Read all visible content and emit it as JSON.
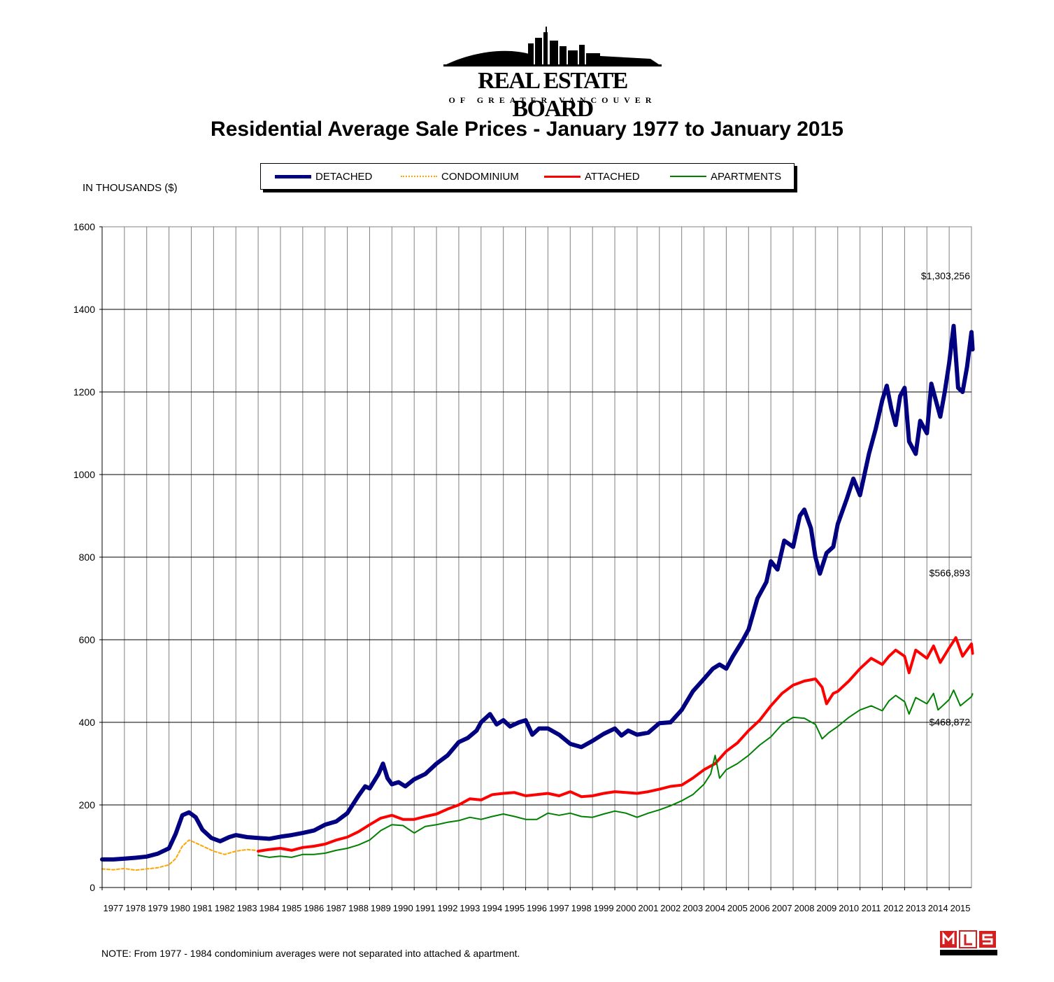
{
  "header": {
    "org_line1": "REAL ESTATE BOARD",
    "org_line2": "OF GREATER VANCOUVER",
    "title": "Residential Average Sale Prices  -  January 1977 to January 2015"
  },
  "y_unit_label": "IN THOUSANDS ($)",
  "legend": [
    {
      "label": "DETACHED",
      "color": "#000080",
      "style": "thick-solid"
    },
    {
      "label": "CONDOMINIUM",
      "color": "#FFA500",
      "style": "dotted"
    },
    {
      "label": "ATTACHED",
      "color": "#FF0000",
      "style": "solid"
    },
    {
      "label": "APARTMENTS",
      "color": "#008000",
      "style": "solid"
    }
  ],
  "annotations": [
    {
      "text": "$1,303,256",
      "series": "DETACHED",
      "x": 2014.05,
      "y": 1303
    },
    {
      "text": "$566,893",
      "series": "ATTACHED",
      "x": 2014.05,
      "y": 567
    },
    {
      "text": "$468,872",
      "series": "APARTMENTS",
      "x": 2014.05,
      "y": 469
    }
  ],
  "note": "NOTE:  From 1977 - 1984 condominium averages were not separated into attached & apartment.",
  "chart_data": {
    "type": "line",
    "title": "Residential Average Sale Prices  -  January 1977 to January 2015",
    "ylabel": "IN THOUSANDS ($)",
    "xlabel": "",
    "ylim": [
      0,
      1600
    ],
    "xlim": [
      1977,
      2016
    ],
    "yticks": [
      0,
      200,
      400,
      600,
      800,
      1000,
      1200,
      1400,
      1600
    ],
    "xticks": [
      "1977",
      "1978",
      "1979",
      "1980",
      "1981",
      "1982",
      "1983",
      "1984",
      "1985",
      "1986",
      "1987",
      "1988",
      "1989",
      "1990",
      "1991",
      "1992",
      "1993",
      "1994",
      "1995",
      "1996",
      "1997",
      "1998",
      "1999",
      "2000",
      "2001",
      "2002",
      "2003",
      "2004",
      "2005",
      "2006",
      "2007",
      "2008",
      "2009",
      "2010",
      "2011",
      "2012",
      "2013",
      "2014",
      "2015"
    ],
    "grid": true,
    "series": [
      {
        "name": "DETACHED",
        "color": "#000080",
        "width": 6,
        "dash": "",
        "points": [
          [
            1977,
            68
          ],
          [
            1977.5,
            68
          ],
          [
            1978,
            70
          ],
          [
            1978.5,
            72
          ],
          [
            1979,
            75
          ],
          [
            1979.5,
            82
          ],
          [
            1980,
            95
          ],
          [
            1980.3,
            130
          ],
          [
            1980.6,
            175
          ],
          [
            1980.9,
            182
          ],
          [
            1981.2,
            170
          ],
          [
            1981.5,
            140
          ],
          [
            1981.9,
            120
          ],
          [
            1982.3,
            112
          ],
          [
            1982.7,
            122
          ],
          [
            1983,
            127
          ],
          [
            1983.5,
            122
          ],
          [
            1984,
            120
          ],
          [
            1984.5,
            118
          ],
          [
            1985,
            123
          ],
          [
            1985.5,
            127
          ],
          [
            1986,
            132
          ],
          [
            1986.5,
            138
          ],
          [
            1987,
            152
          ],
          [
            1987.5,
            160
          ],
          [
            1988,
            180
          ],
          [
            1988.5,
            222
          ],
          [
            1988.8,
            245
          ],
          [
            1989,
            240
          ],
          [
            1989.4,
            275
          ],
          [
            1989.6,
            300
          ],
          [
            1989.8,
            265
          ],
          [
            1990,
            250
          ],
          [
            1990.3,
            255
          ],
          [
            1990.6,
            245
          ],
          [
            1991,
            262
          ],
          [
            1991.5,
            275
          ],
          [
            1992,
            300
          ],
          [
            1992.5,
            320
          ],
          [
            1993,
            352
          ],
          [
            1993.4,
            362
          ],
          [
            1993.8,
            380
          ],
          [
            1994,
            400
          ],
          [
            1994.4,
            420
          ],
          [
            1994.7,
            395
          ],
          [
            1995,
            405
          ],
          [
            1995.3,
            390
          ],
          [
            1995.7,
            400
          ],
          [
            1996,
            405
          ],
          [
            1996.3,
            370
          ],
          [
            1996.6,
            385
          ],
          [
            1997,
            385
          ],
          [
            1997.5,
            370
          ],
          [
            1998,
            348
          ],
          [
            1998.5,
            340
          ],
          [
            1999,
            355
          ],
          [
            1999.5,
            372
          ],
          [
            2000,
            385
          ],
          [
            2000.3,
            368
          ],
          [
            2000.6,
            380
          ],
          [
            2001,
            370
          ],
          [
            2001.5,
            375
          ],
          [
            2002,
            398
          ],
          [
            2002.5,
            400
          ],
          [
            2003,
            430
          ],
          [
            2003.5,
            475
          ],
          [
            2004,
            505
          ],
          [
            2004.4,
            530
          ],
          [
            2004.7,
            540
          ],
          [
            2005,
            530
          ],
          [
            2005.3,
            560
          ],
          [
            2005.7,
            595
          ],
          [
            2006,
            625
          ],
          [
            2006.4,
            700
          ],
          [
            2006.8,
            740
          ],
          [
            2007,
            790
          ],
          [
            2007.3,
            770
          ],
          [
            2007.6,
            840
          ],
          [
            2008,
            825
          ],
          [
            2008.3,
            900
          ],
          [
            2008.5,
            915
          ],
          [
            2008.8,
            870
          ],
          [
            2009,
            800
          ],
          [
            2009.2,
            760
          ],
          [
            2009.5,
            810
          ],
          [
            2009.8,
            825
          ],
          [
            2010,
            880
          ],
          [
            2010.4,
            940
          ],
          [
            2010.7,
            990
          ],
          [
            2011,
            950
          ],
          [
            2011.4,
            1050
          ],
          [
            2011.7,
            1110
          ],
          [
            2012,
            1180
          ],
          [
            2012.2,
            1215
          ],
          [
            2012.4,
            1160
          ],
          [
            2012.6,
            1120
          ],
          [
            2012.8,
            1190
          ],
          [
            2013,
            1210
          ],
          [
            2013.2,
            1080
          ],
          [
            2013.5,
            1050
          ],
          [
            2013.7,
            1130
          ],
          [
            2014,
            1100
          ],
          [
            2014.2,
            1220
          ],
          [
            2014.4,
            1180
          ],
          [
            2014.6,
            1140
          ],
          [
            2014.8,
            1200
          ],
          [
            2015,
            1270
          ],
          [
            2015.2,
            1360
          ],
          [
            2015.4,
            1210
          ],
          [
            2015.6,
            1200
          ],
          [
            2015.8,
            1260
          ],
          [
            2016,
            1345
          ],
          [
            2016.05,
            1303
          ]
        ]
      },
      {
        "name": "CONDOMINIUM",
        "color": "#FFA500",
        "width": 2,
        "dash": "4,3",
        "points": [
          [
            1977,
            45
          ],
          [
            1977.5,
            43
          ],
          [
            1978,
            46
          ],
          [
            1978.5,
            42
          ],
          [
            1979,
            45
          ],
          [
            1979.5,
            48
          ],
          [
            1980,
            55
          ],
          [
            1980.3,
            70
          ],
          [
            1980.6,
            100
          ],
          [
            1980.9,
            115
          ],
          [
            1981.2,
            108
          ],
          [
            1981.6,
            98
          ],
          [
            1982,
            88
          ],
          [
            1982.5,
            80
          ],
          [
            1983,
            88
          ],
          [
            1983.5,
            92
          ],
          [
            1983.9,
            90
          ]
        ]
      },
      {
        "name": "ATTACHED",
        "color": "#FF0000",
        "width": 4,
        "dash": "",
        "points": [
          [
            1984,
            88
          ],
          [
            1984.5,
            92
          ],
          [
            1985,
            95
          ],
          [
            1985.5,
            90
          ],
          [
            1986,
            97
          ],
          [
            1986.5,
            100
          ],
          [
            1987,
            105
          ],
          [
            1987.5,
            115
          ],
          [
            1988,
            122
          ],
          [
            1988.5,
            135
          ],
          [
            1989,
            152
          ],
          [
            1989.5,
            168
          ],
          [
            1990,
            175
          ],
          [
            1990.5,
            165
          ],
          [
            1991,
            165
          ],
          [
            1991.5,
            172
          ],
          [
            1992,
            178
          ],
          [
            1992.5,
            190
          ],
          [
            1993,
            200
          ],
          [
            1993.5,
            215
          ],
          [
            1994,
            212
          ],
          [
            1994.5,
            225
          ],
          [
            1995,
            228
          ],
          [
            1995.5,
            230
          ],
          [
            1996,
            222
          ],
          [
            1996.5,
            225
          ],
          [
            1997,
            228
          ],
          [
            1997.5,
            222
          ],
          [
            1998,
            232
          ],
          [
            1998.5,
            220
          ],
          [
            1999,
            222
          ],
          [
            1999.5,
            228
          ],
          [
            2000,
            232
          ],
          [
            2000.5,
            230
          ],
          [
            2001,
            228
          ],
          [
            2001.5,
            232
          ],
          [
            2002,
            238
          ],
          [
            2002.5,
            245
          ],
          [
            2003,
            248
          ],
          [
            2003.5,
            265
          ],
          [
            2004,
            285
          ],
          [
            2004.5,
            300
          ],
          [
            2005,
            330
          ],
          [
            2005.5,
            350
          ],
          [
            2006,
            380
          ],
          [
            2006.5,
            405
          ],
          [
            2007,
            440
          ],
          [
            2007.5,
            470
          ],
          [
            2008,
            490
          ],
          [
            2008.5,
            500
          ],
          [
            2009,
            505
          ],
          [
            2009.3,
            485
          ],
          [
            2009.5,
            445
          ],
          [
            2009.8,
            470
          ],
          [
            2010,
            475
          ],
          [
            2010.5,
            500
          ],
          [
            2011,
            530
          ],
          [
            2011.5,
            555
          ],
          [
            2012,
            540
          ],
          [
            2012.3,
            560
          ],
          [
            2012.6,
            575
          ],
          [
            2013,
            560
          ],
          [
            2013.2,
            520
          ],
          [
            2013.5,
            575
          ],
          [
            2014,
            555
          ],
          [
            2014.3,
            585
          ],
          [
            2014.6,
            545
          ],
          [
            2015,
            580
          ],
          [
            2015.3,
            605
          ],
          [
            2015.6,
            560
          ],
          [
            2016,
            590
          ],
          [
            2016.05,
            567
          ]
        ]
      },
      {
        "name": "APARTMENTS",
        "color": "#008000",
        "width": 2,
        "dash": "",
        "points": [
          [
            1984,
            78
          ],
          [
            1984.5,
            73
          ],
          [
            1985,
            76
          ],
          [
            1985.5,
            73
          ],
          [
            1986,
            80
          ],
          [
            1986.5,
            80
          ],
          [
            1987,
            83
          ],
          [
            1987.5,
            90
          ],
          [
            1988,
            95
          ],
          [
            1988.5,
            103
          ],
          [
            1989,
            115
          ],
          [
            1989.5,
            138
          ],
          [
            1990,
            152
          ],
          [
            1990.5,
            150
          ],
          [
            1991,
            132
          ],
          [
            1991.5,
            148
          ],
          [
            1992,
            152
          ],
          [
            1992.5,
            158
          ],
          [
            1993,
            162
          ],
          [
            1993.5,
            170
          ],
          [
            1994,
            165
          ],
          [
            1994.5,
            172
          ],
          [
            1995,
            178
          ],
          [
            1995.5,
            172
          ],
          [
            1996,
            165
          ],
          [
            1996.5,
            165
          ],
          [
            1997,
            180
          ],
          [
            1997.5,
            175
          ],
          [
            1998,
            180
          ],
          [
            1998.5,
            172
          ],
          [
            1999,
            170
          ],
          [
            1999.5,
            178
          ],
          [
            2000,
            185
          ],
          [
            2000.5,
            180
          ],
          [
            2001,
            170
          ],
          [
            2001.5,
            180
          ],
          [
            2002,
            188
          ],
          [
            2002.5,
            198
          ],
          [
            2003,
            210
          ],
          [
            2003.5,
            225
          ],
          [
            2004,
            250
          ],
          [
            2004.3,
            275
          ],
          [
            2004.5,
            320
          ],
          [
            2004.7,
            265
          ],
          [
            2005,
            285
          ],
          [
            2005.5,
            300
          ],
          [
            2006,
            320
          ],
          [
            2006.5,
            345
          ],
          [
            2007,
            365
          ],
          [
            2007.5,
            395
          ],
          [
            2008,
            412
          ],
          [
            2008.5,
            410
          ],
          [
            2009,
            395
          ],
          [
            2009.3,
            360
          ],
          [
            2009.6,
            375
          ],
          [
            2010,
            390
          ],
          [
            2010.5,
            412
          ],
          [
            2011,
            430
          ],
          [
            2011.5,
            440
          ],
          [
            2012,
            428
          ],
          [
            2012.3,
            452
          ],
          [
            2012.6,
            465
          ],
          [
            2013,
            450
          ],
          [
            2013.2,
            420
          ],
          [
            2013.5,
            460
          ],
          [
            2014,
            445
          ],
          [
            2014.3,
            470
          ],
          [
            2014.5,
            430
          ],
          [
            2014.8,
            445
          ],
          [
            2015,
            455
          ],
          [
            2015.2,
            478
          ],
          [
            2015.5,
            440
          ],
          [
            2016,
            462
          ],
          [
            2016.05,
            469
          ]
        ]
      }
    ]
  }
}
